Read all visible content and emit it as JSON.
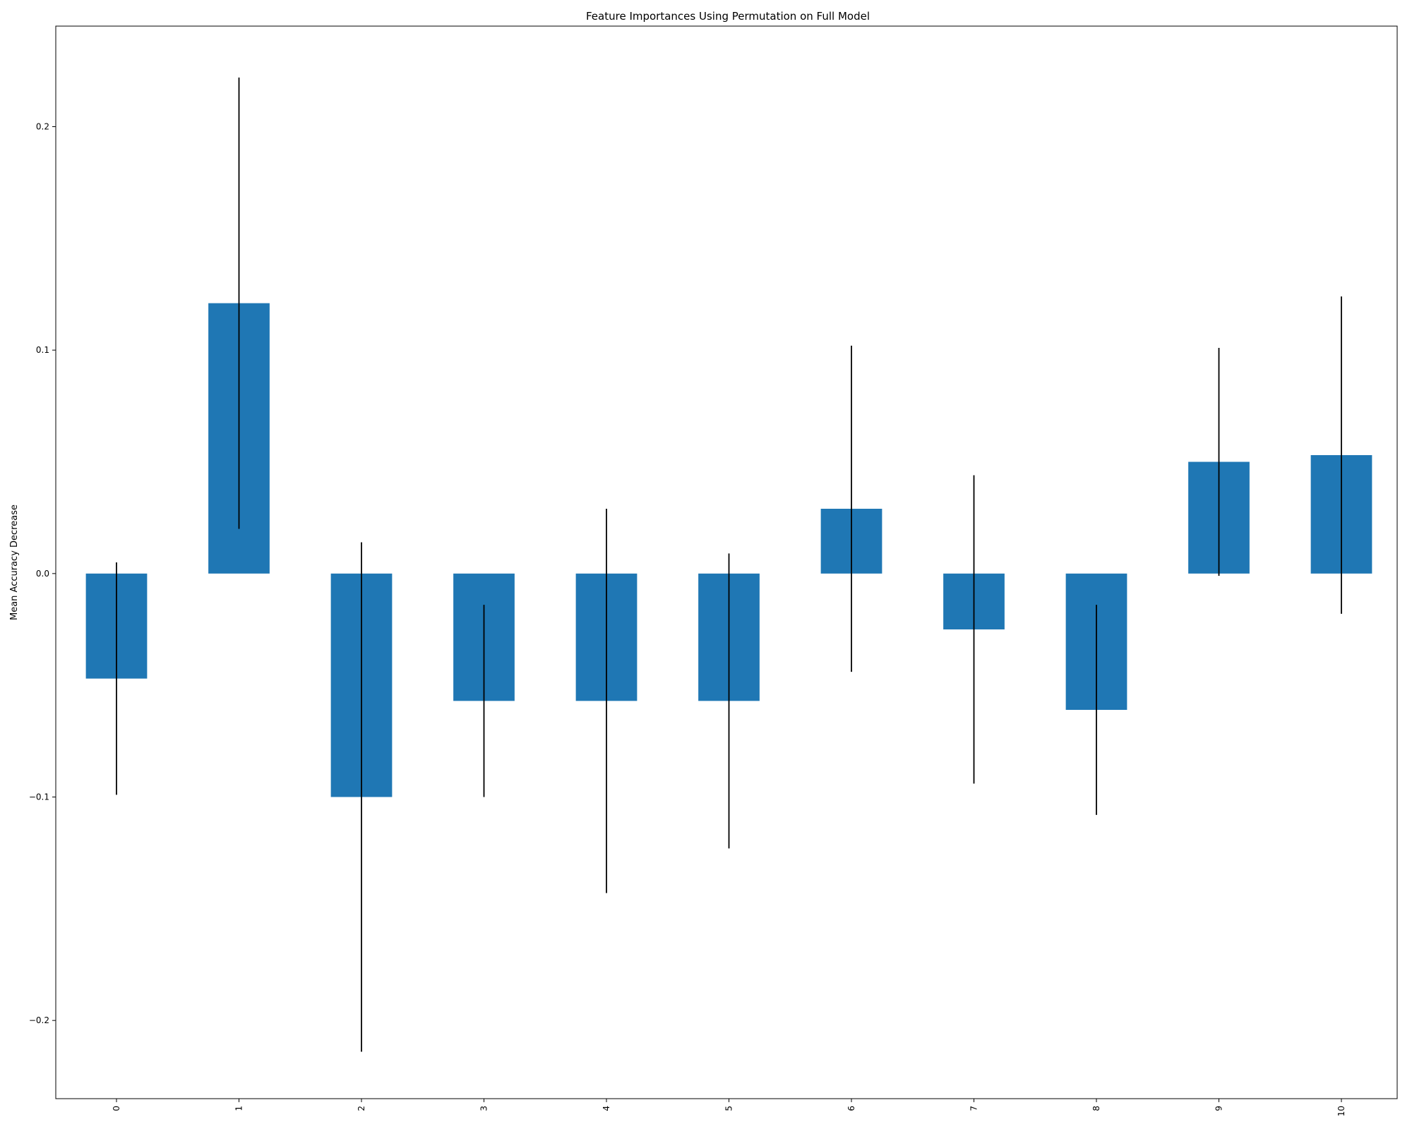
{
  "chart_data": {
    "type": "bar",
    "title": "Feature Importances Using Permutation on Full Model",
    "xlabel": "",
    "ylabel": "Mean Accuracy Decrease",
    "categories": [
      "0",
      "1",
      "2",
      "3",
      "4",
      "5",
      "6",
      "7",
      "8",
      "9",
      "10"
    ],
    "values": [
      -0.047,
      0.121,
      -0.1,
      -0.057,
      -0.057,
      -0.057,
      0.029,
      -0.025,
      -0.061,
      0.05,
      0.053
    ],
    "errors": [
      0.052,
      0.101,
      0.114,
      0.043,
      0.086,
      0.066,
      0.073,
      0.069,
      0.047,
      0.051,
      0.071
    ],
    "ylim": [
      -0.235,
      0.245
    ],
    "yticks": [
      -0.2,
      -0.1,
      0.0,
      0.1,
      0.2
    ],
    "ytick_labels": [
      "−0.2",
      "−0.1",
      "0.0",
      "0.1",
      "0.2"
    ],
    "bar_color": "#1f77b4",
    "error_color": "#000000",
    "grid": false,
    "legend": "none"
  }
}
